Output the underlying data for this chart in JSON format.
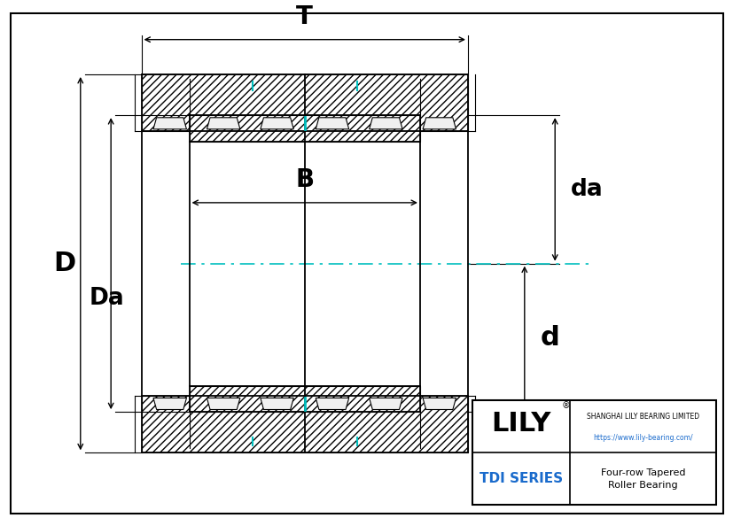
{
  "bg_color": "#e8e8e8",
  "line_color": "#000000",
  "cyan_color": "#00bfbf",
  "figsize": [
    8.28,
    5.85
  ],
  "dpi": 100,
  "company_line1": "SHANGHAI LILY BEARING LIMITED",
  "company_line2": "https://www.lily-bearing.com/",
  "series_text": "TDI SERIES",
  "bearing_type": "Four-row Tapered\nRoller Bearing",
  "title_blue": "#1a6bcc"
}
